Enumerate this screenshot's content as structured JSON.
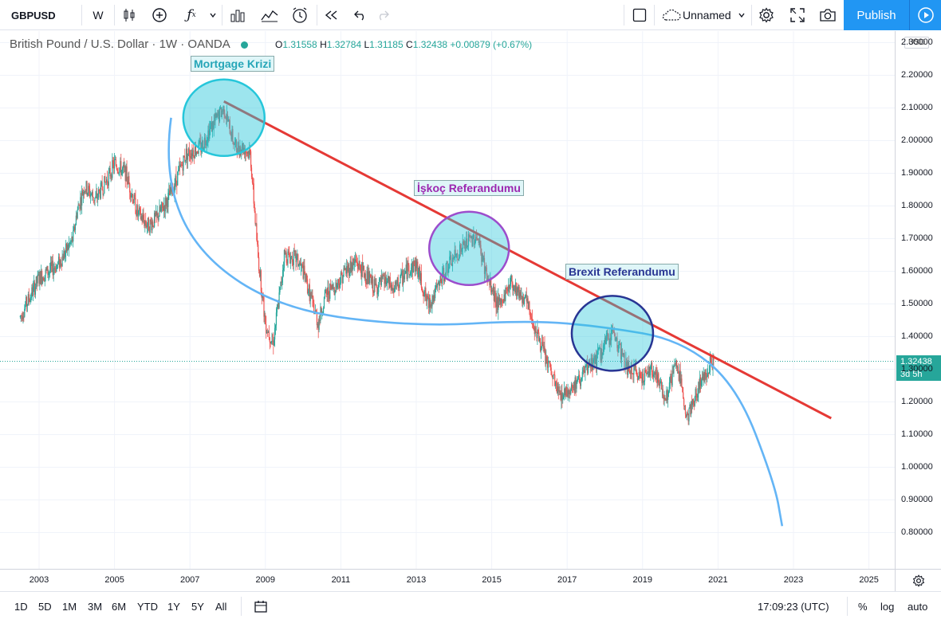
{
  "toolbar": {
    "symbol": "GBPUSD",
    "interval": "W",
    "layout_name": "Unnamed",
    "publish_label": "Publish",
    "icons": [
      "candles-icon",
      "add-indicator-icon",
      "fx-icon",
      "chevron-down-icon",
      "bars-icon",
      "compare-icon",
      "alert-icon",
      "replay-icon",
      "undo-icon",
      "redo-icon",
      "layout-icon",
      "cloud-icon",
      "chevron-down-icon",
      "settings-icon",
      "fullscreen-icon",
      "camera-icon",
      "play-icon"
    ]
  },
  "legend": {
    "title": "British Pound / U.S. Dollar · 1W · OANDA",
    "o_label": "O",
    "o": "1.31558",
    "h_label": "H",
    "h": "1.32784",
    "l_label": "L",
    "l": "1.31185",
    "c_label": "C",
    "c": "1.32438",
    "change": "+0.00879 (+0.67%)",
    "currency": "USD"
  },
  "annotations": {
    "mortgage": "Mortgage Krizi",
    "scotland": "İşkoç Referandumu",
    "brexit": "Brexit Referandumu"
  },
  "price_axis": {
    "ticks": [
      "2.30000",
      "2.20000",
      "2.10000",
      "2.00000",
      "1.90000",
      "1.80000",
      "1.70000",
      "1.60000",
      "1.50000",
      "1.40000",
      "1.30000",
      "1.20000",
      "1.10000",
      "1.00000",
      "0.90000",
      "0.80000"
    ],
    "last_price": "1.32438",
    "countdown": "3d 5h"
  },
  "time_axis": {
    "ticks": [
      "2003",
      "2005",
      "2007",
      "2009",
      "2011",
      "2013",
      "2015",
      "2017",
      "2019",
      "2021",
      "2023",
      "2025"
    ]
  },
  "bottom": {
    "ranges": [
      "1D",
      "5D",
      "1M",
      "3M",
      "6M",
      "YTD",
      "1Y",
      "5Y",
      "All"
    ],
    "clock": "17:09:23 (UTC)",
    "percent": "%",
    "log": "log",
    "auto": "auto"
  },
  "colors": {
    "up": "#26a69a",
    "down": "#ef5350",
    "trendline": "#e53935",
    "curve": "#64b5f6",
    "circle_mortgage": "#26c6da",
    "circle_scotland": "#9c4dcc",
    "circle_brexit": "#283593",
    "accent": "#2196f3"
  },
  "chart_data": {
    "type": "candlestick",
    "symbol": "GBPUSD",
    "interval": "1W",
    "x_range": [
      2002,
      2026
    ],
    "y_range": [
      0.75,
      2.3
    ],
    "price_points": [
      [
        2002.5,
        1.46
      ],
      [
        2003.0,
        1.58
      ],
      [
        2003.5,
        1.62
      ],
      [
        2003.9,
        1.7
      ],
      [
        2004.0,
        1.78
      ],
      [
        2004.2,
        1.86
      ],
      [
        2004.5,
        1.82
      ],
      [
        2004.8,
        1.88
      ],
      [
        2005.0,
        1.93
      ],
      [
        2005.3,
        1.9
      ],
      [
        2005.6,
        1.78
      ],
      [
        2005.9,
        1.74
      ],
      [
        2006.1,
        1.76
      ],
      [
        2006.5,
        1.84
      ],
      [
        2006.9,
        1.96
      ],
      [
        2007.3,
        1.98
      ],
      [
        2007.5,
        2.03
      ],
      [
        2007.9,
        2.1
      ],
      [
        2008.2,
        1.98
      ],
      [
        2008.4,
        1.98
      ],
      [
        2008.6,
        1.96
      ],
      [
        2008.8,
        1.65
      ],
      [
        2009.0,
        1.44
      ],
      [
        2009.2,
        1.38
      ],
      [
        2009.4,
        1.55
      ],
      [
        2009.5,
        1.65
      ],
      [
        2009.8,
        1.64
      ],
      [
        2010.0,
        1.6
      ],
      [
        2010.4,
        1.44
      ],
      [
        2010.6,
        1.53
      ],
      [
        2010.9,
        1.56
      ],
      [
        2011.1,
        1.6
      ],
      [
        2011.4,
        1.63
      ],
      [
        2011.7,
        1.58
      ],
      [
        2011.9,
        1.55
      ],
      [
        2012.2,
        1.57
      ],
      [
        2012.4,
        1.54
      ],
      [
        2012.8,
        1.61
      ],
      [
        2013.0,
        1.62
      ],
      [
        2013.3,
        1.5
      ],
      [
        2013.5,
        1.53
      ],
      [
        2013.8,
        1.61
      ],
      [
        2014.2,
        1.67
      ],
      [
        2014.6,
        1.71
      ],
      [
        2014.9,
        1.57
      ],
      [
        2015.2,
        1.49
      ],
      [
        2015.5,
        1.57
      ],
      [
        2015.9,
        1.51
      ],
      [
        2016.2,
        1.41
      ],
      [
        2016.5,
        1.31
      ],
      [
        2016.8,
        1.22
      ],
      [
        2017.2,
        1.25
      ],
      [
        2017.6,
        1.31
      ],
      [
        2017.9,
        1.35
      ],
      [
        2018.2,
        1.42
      ],
      [
        2018.6,
        1.3
      ],
      [
        2019.0,
        1.28
      ],
      [
        2019.3,
        1.3
      ],
      [
        2019.6,
        1.21
      ],
      [
        2019.9,
        1.32
      ],
      [
        2020.2,
        1.15
      ],
      [
        2020.5,
        1.25
      ],
      [
        2020.8,
        1.32
      ],
      [
        2020.9,
        1.324
      ]
    ],
    "last": {
      "open": 1.31558,
      "high": 1.32784,
      "low": 1.31185,
      "close": 1.32438
    },
    "drawings": [
      {
        "type": "trendline",
        "from": [
          2007.9,
          2.12
        ],
        "to": [
          2024.0,
          1.15
        ]
      },
      {
        "type": "curve",
        "points": [
          [
            2006.5,
            2.07
          ],
          [
            2006.3,
            1.9
          ],
          [
            2007.2,
            1.65
          ],
          [
            2009.5,
            1.48
          ],
          [
            2013.0,
            1.43
          ],
          [
            2016.0,
            1.45
          ],
          [
            2018.0,
            1.43
          ],
          [
            2020.0,
            1.39
          ],
          [
            2021.5,
            1.25
          ],
          [
            2022.5,
            0.95
          ],
          [
            2022.7,
            0.82
          ]
        ]
      },
      {
        "type": "circle",
        "label": "Mortgage Krizi",
        "center": [
          2007.9,
          2.07
        ]
      },
      {
        "type": "circle",
        "label": "İşkoç Referandumu",
        "center": [
          2014.4,
          1.67
        ]
      },
      {
        "type": "circle",
        "label": "Brexit Referandumu",
        "center": [
          2018.2,
          1.41
        ]
      }
    ]
  }
}
